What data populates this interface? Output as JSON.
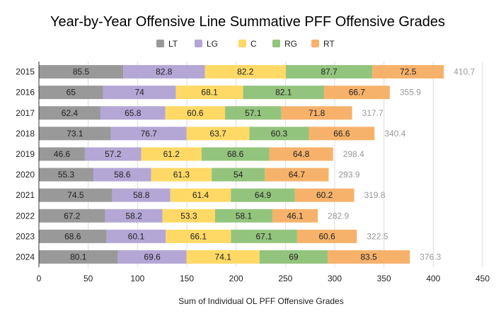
{
  "chart_data": {
    "type": "bar",
    "orientation": "horizontal",
    "stacked": true,
    "title": "Year-by-Year Offensive Line Summative PFF Offensive Grades",
    "xlabel": "Sum of Individual OL PFF Offensive Grades",
    "ylabel": "",
    "xlim": [
      0,
      450
    ],
    "xticks": [
      0,
      50,
      100,
      150,
      200,
      250,
      300,
      350,
      400,
      450
    ],
    "grid": true,
    "legend_position": "top",
    "categories": [
      "2015",
      "2016",
      "2017",
      "2018",
      "2019",
      "2020",
      "2021",
      "2022",
      "2023",
      "2024"
    ],
    "series": [
      {
        "name": "LT",
        "color": "#999999",
        "values": [
          85.5,
          65,
          62.4,
          73.1,
          46.6,
          55.3,
          74.5,
          67.2,
          68.6,
          80.1
        ]
      },
      {
        "name": "LG",
        "color": "#b4a7d6",
        "values": [
          82.8,
          74,
          65.8,
          76.7,
          57.2,
          58.6,
          58.8,
          58.2,
          60.1,
          69.6
        ]
      },
      {
        "name": "C",
        "color": "#ffd966",
        "values": [
          82.2,
          68.1,
          60.6,
          63.7,
          61.2,
          61.3,
          61.4,
          53.3,
          66.1,
          74.1
        ]
      },
      {
        "name": "RG",
        "color": "#93c47d",
        "values": [
          87.7,
          82.1,
          57.1,
          60.3,
          68.6,
          54,
          64.9,
          58.1,
          67.1,
          69
        ]
      },
      {
        "name": "RT",
        "color": "#f6b26b",
        "values": [
          72.5,
          66.7,
          71.8,
          66.6,
          64.8,
          64.7,
          60.2,
          46.1,
          60.6,
          83.5
        ]
      }
    ],
    "totals": [
      "410.7",
      "355.9",
      "317.7",
      "340.4",
      "298.4",
      "293.9",
      "319.8",
      "282.9",
      "322.5",
      "376.3"
    ]
  }
}
